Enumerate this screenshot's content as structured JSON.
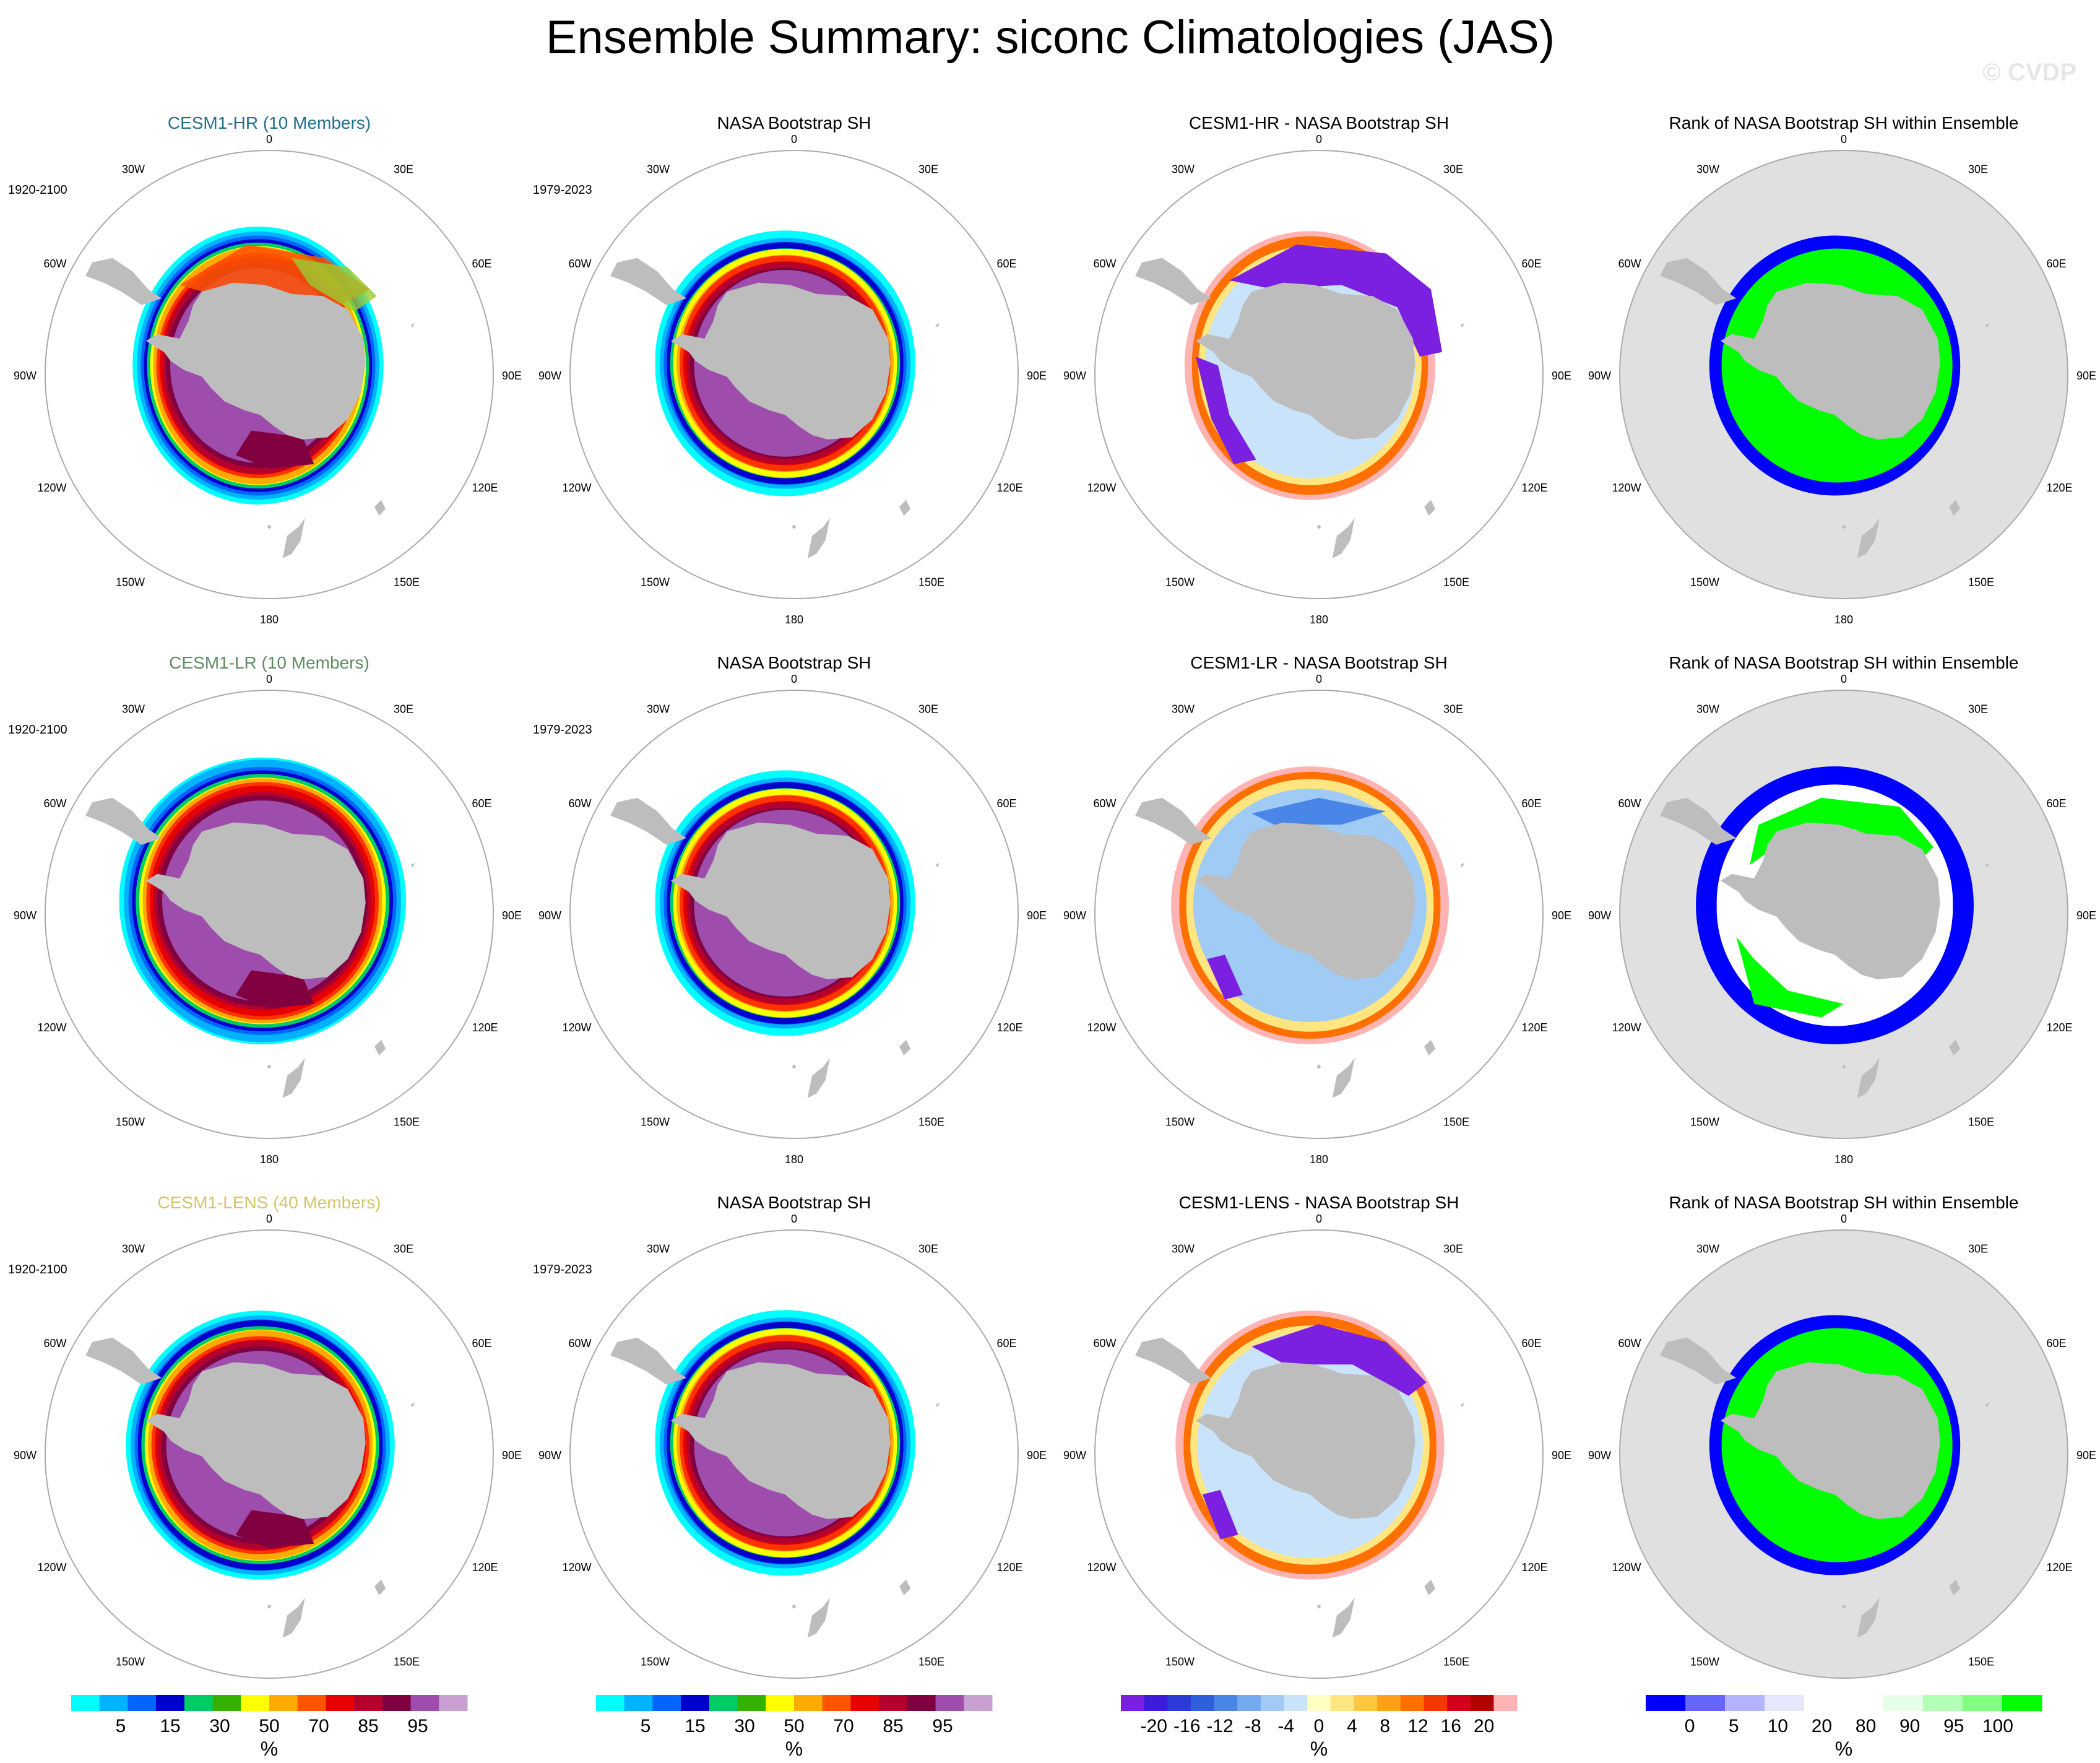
{
  "figure": {
    "title": "Ensemble Summary: siconc Climatologies (JAS)",
    "watermark": "© CVDP"
  },
  "map_labels": {
    "top": "0",
    "bottom": "180",
    "upper_left": "30W",
    "upper_right": "30E",
    "mid_upper_left": "60W",
    "mid_upper_right": "60E",
    "left": "90W",
    "right": "90E",
    "mid_lower_left": "120W",
    "mid_lower_right": "120E",
    "lower_left": "150W",
    "lower_right": "150E"
  },
  "colors": {
    "land": "#bdbdbd",
    "rank_background": "#e0e0e0",
    "circle": "#aaaaaa",
    "hr_title": "#1f6f8b",
    "lr_title": "#5e8c61",
    "lens_title": "#d4c56a",
    "watermark": "#e6e6e6"
  },
  "panels": [
    {
      "row": 0,
      "col": 0,
      "title": "CESM1-HR (10 Members)",
      "title_color": "#1f6f8b",
      "period": "1920-2100",
      "kind": "model"
    },
    {
      "row": 0,
      "col": 1,
      "title": "NASA Bootstrap SH",
      "period": "1979-2023",
      "kind": "obs"
    },
    {
      "row": 0,
      "col": 2,
      "title": "CESM1-HR - NASA Bootstrap SH",
      "kind": "diff"
    },
    {
      "row": 0,
      "col": 3,
      "title": "Rank of NASA Bootstrap SH within Ensemble",
      "kind": "rank"
    },
    {
      "row": 1,
      "col": 0,
      "title": "CESM1-LR (10 Members)",
      "title_color": "#5e8c61",
      "period": "1920-2100",
      "kind": "model"
    },
    {
      "row": 1,
      "col": 1,
      "title": "NASA Bootstrap SH",
      "period": "1979-2023",
      "kind": "obs"
    },
    {
      "row": 1,
      "col": 2,
      "title": "CESM1-LR - NASA Bootstrap SH",
      "kind": "diff"
    },
    {
      "row": 1,
      "col": 3,
      "title": "Rank of NASA Bootstrap SH within Ensemble",
      "kind": "rank"
    },
    {
      "row": 2,
      "col": 0,
      "title": "CESM1-LENS (40 Members)",
      "title_color": "#d4c56a",
      "period": "1920-2100",
      "kind": "model"
    },
    {
      "row": 2,
      "col": 1,
      "title": "NASA Bootstrap SH",
      "period": "1979-2023",
      "kind": "obs"
    },
    {
      "row": 2,
      "col": 2,
      "title": "CESM1-LENS - NASA Bootstrap SH",
      "kind": "diff"
    },
    {
      "row": 2,
      "col": 3,
      "title": "Rank of NASA Bootstrap SH within Ensemble",
      "kind": "rank"
    }
  ],
  "colorbars": [
    {
      "id": "siconc-model",
      "unit": "%",
      "colors": [
        "#00ffff",
        "#00b2ff",
        "#0066ff",
        "#0000cc",
        "#00cc66",
        "#33b300",
        "#ffff00",
        "#ffaa00",
        "#ff5500",
        "#e60000",
        "#b3002d",
        "#800040",
        "#9e4dad",
        "#c8a0d2"
      ],
      "labels": [
        "5",
        "15",
        "30",
        "50",
        "70",
        "85",
        "95"
      ]
    },
    {
      "id": "siconc-obs",
      "unit": "%",
      "colors": [
        "#00ffff",
        "#00b2ff",
        "#0066ff",
        "#0000cc",
        "#00cc66",
        "#33b300",
        "#ffff00",
        "#ffaa00",
        "#ff5500",
        "#e60000",
        "#b3002d",
        "#800040",
        "#9e4dad",
        "#c8a0d2"
      ],
      "labels": [
        "5",
        "15",
        "30",
        "50",
        "70",
        "85",
        "95"
      ]
    },
    {
      "id": "siconc-diff",
      "unit": "%",
      "colors": [
        "#7b1fe0",
        "#3d1cd9",
        "#2a3bd6",
        "#2f5fde",
        "#4a86e8",
        "#74a9f0",
        "#9fcbf5",
        "#c9e4fa",
        "#ffffc2",
        "#ffe680",
        "#ffc640",
        "#ff9f1a",
        "#ff7000",
        "#f03a00",
        "#d4001a",
        "#b30000",
        "#ffb3b3"
      ],
      "labels": [
        "-20",
        "-16",
        "-12",
        "-8",
        "-4",
        "0",
        "4",
        "8",
        "12",
        "16",
        "20"
      ]
    },
    {
      "id": "rank",
      "unit": "%",
      "colors": [
        "#0000ff",
        "#6666ff",
        "#b3b3ff",
        "#e6e6ff",
        "#ffffff",
        "#ffffff",
        "#e6ffe6",
        "#b3ffb3",
        "#80ff80",
        "#00ff00"
      ],
      "labels": [
        "0",
        "5",
        "10",
        "20",
        "80",
        "90",
        "95",
        "100"
      ]
    }
  ],
  "chart_data": {
    "type": "polar-map",
    "title": "Ensemble Summary: siconc Climatologies (JAS)",
    "variable": "siconc",
    "season": "JAS",
    "unit": "%",
    "rows": [
      "CESM1-HR (10 Members)",
      "CESM1-LR (10 Members)",
      "CESM1-LENS (40 Members)"
    ],
    "columns": [
      "model climatology",
      "NASA Bootstrap SH",
      "model - obs difference",
      "rank of obs within ensemble"
    ],
    "siconc_levels": [
      5,
      15,
      30,
      50,
      70,
      85,
      95
    ],
    "diff_levels": [
      -20,
      -16,
      -12,
      -8,
      -4,
      0,
      4,
      8,
      12,
      16,
      20
    ],
    "rank_levels": [
      0,
      5,
      10,
      20,
      80,
      90,
      95,
      100
    ]
  }
}
